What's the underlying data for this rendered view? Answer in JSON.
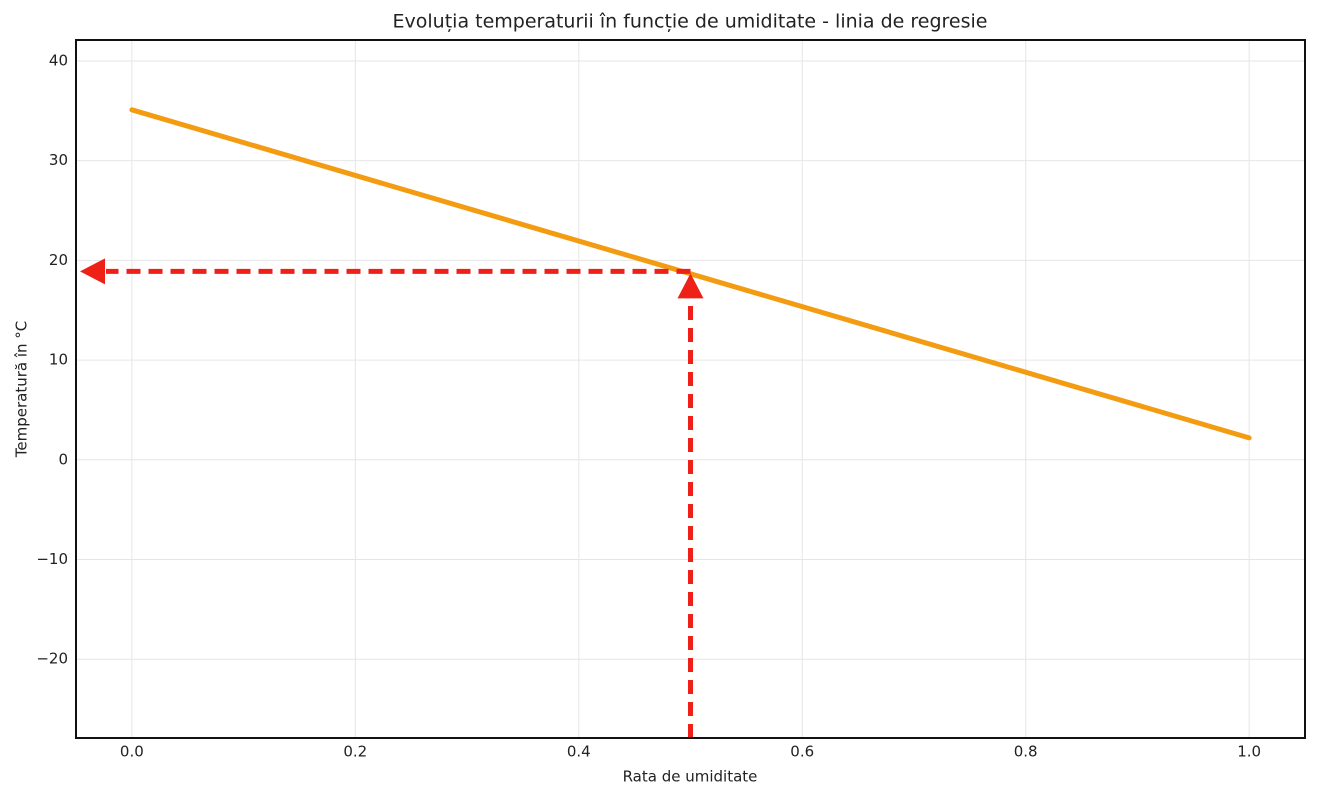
{
  "chart_data": {
    "type": "line",
    "title": "Evoluția temperaturii în funcție de umiditate - linia de regresie",
    "x_label": "Rata de umiditate",
    "y_label": "Temperatură în °C",
    "x": [
      0.0,
      1.0
    ],
    "series": [
      {
        "color": "#f39c12",
        "values": [
          35.1,
          2.2
        ]
      }
    ],
    "marker": {
      "x": 0.5,
      "y": 18.9,
      "color": "#ee2018"
    },
    "xlim": [
      -0.05,
      1.05
    ],
    "ylim": [
      -27.9,
      42.1
    ],
    "xticks": [
      {
        "value": 0,
        "label": "0.0"
      },
      {
        "value": 0.2,
        "label": "0.2"
      },
      {
        "value": 0.4,
        "label": "0.4"
      },
      {
        "value": 0.6,
        "label": "0.6"
      },
      {
        "value": 0.8,
        "label": "0.8"
      },
      {
        "value": 1,
        "label": "1.0"
      }
    ],
    "yticks": [
      {
        "value": -20,
        "label": "−20"
      },
      {
        "value": -10,
        "label": "−10"
      },
      0,
      10,
      20,
      30,
      40
    ],
    "grid": true
  }
}
